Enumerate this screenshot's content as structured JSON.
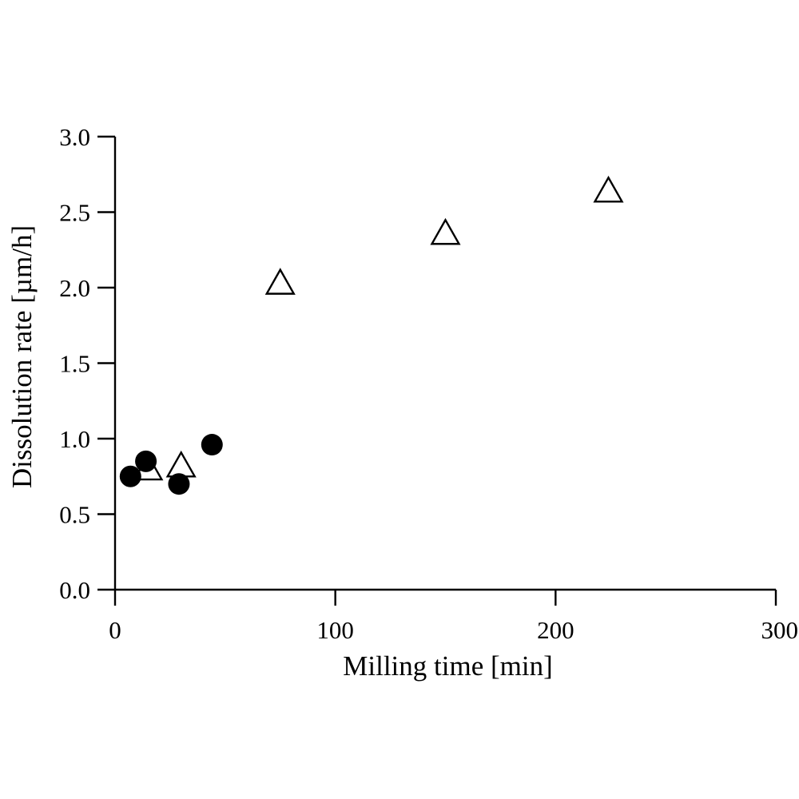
{
  "chart_data": {
    "type": "scatter",
    "title": "",
    "xlabel": "Milling time [min]",
    "ylabel": "Dissolution rate [µm/h]",
    "xlim": [
      0,
      300
    ],
    "ylim": [
      0.0,
      3.0
    ],
    "x_ticks": [
      0,
      100,
      200,
      300
    ],
    "x_tick_labels": [
      "0",
      "100",
      "200",
      "300"
    ],
    "y_ticks": [
      0.0,
      0.5,
      1.0,
      1.5,
      2.0,
      2.5,
      3.0
    ],
    "y_tick_labels": [
      "0.0",
      "0.5",
      "1.0",
      "1.5",
      "2.0",
      "2.5",
      "3.0"
    ],
    "grid": false,
    "legend": "none",
    "series": [
      {
        "marker": "open-triangle",
        "color": "#000000",
        "points": [
          {
            "x": 15,
            "y": 0.79
          },
          {
            "x": 30,
            "y": 0.81
          },
          {
            "x": 75,
            "y": 2.02
          },
          {
            "x": 150,
            "y": 2.35
          },
          {
            "x": 224,
            "y": 2.63
          }
        ]
      },
      {
        "marker": "filled-circle",
        "color": "#000000",
        "points": [
          {
            "x": 7,
            "y": 0.75
          },
          {
            "x": 14,
            "y": 0.85
          },
          {
            "x": 29,
            "y": 0.7
          },
          {
            "x": 44,
            "y": 0.96
          }
        ]
      }
    ]
  }
}
